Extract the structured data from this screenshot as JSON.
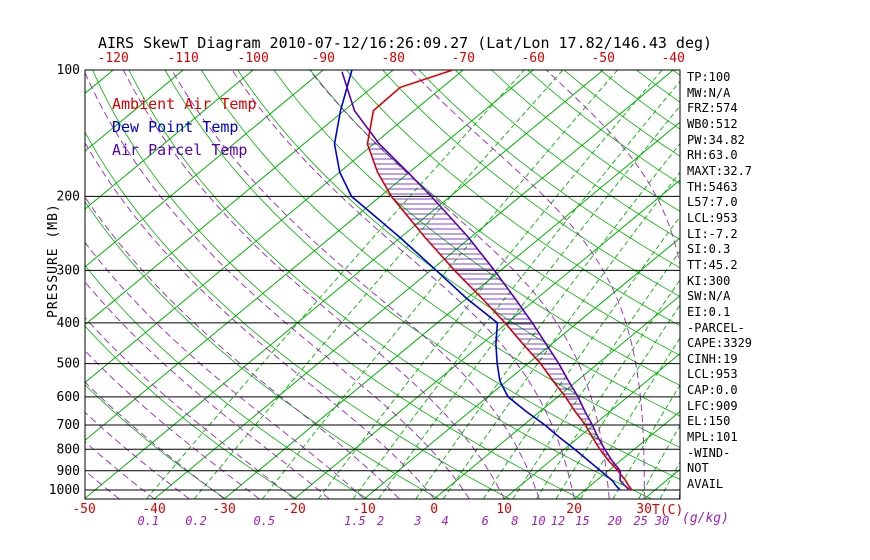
{
  "chart_data": {
    "type": "line",
    "title": "AIRS SkewT Diagram 2010-07-12/16:26:09.27 (Lat/Lon 17.82/146.43 deg)",
    "y_axis_label": "PRESSURE (MB)",
    "x_unit": "T(C)",
    "w_unit": "(g/kg)",
    "pressure_scale": "log",
    "pressure_range_mb": [
      100,
      1050
    ],
    "pressure_ticks": [
      100,
      200,
      300,
      400,
      500,
      600,
      700,
      800,
      900,
      1000
    ],
    "top_temp_labels": [
      -120,
      -110,
      -100,
      -90,
      -80,
      -70,
      -60,
      -50,
      -40
    ],
    "bottom_temp_labels": [
      -50,
      -40,
      -30,
      -20,
      -10,
      0,
      10,
      20,
      30
    ],
    "mixing_ratio_labels": [
      0.1,
      0.2,
      0.5,
      1.5,
      2,
      3,
      4,
      6,
      8,
      10,
      12,
      15,
      20,
      25,
      30
    ],
    "mixing_ratio_lines": [
      0.1,
      0.2,
      0.5,
      1,
      1.5,
      2,
      3,
      4,
      6,
      8,
      10,
      12,
      15,
      20,
      25,
      30
    ],
    "isotherm_step_c": 10,
    "colors": {
      "green": "#00b400",
      "red": "#dd0000",
      "blue": "#0000cd",
      "purple": "#a020c0",
      "parcel": "#5a00b4",
      "black": "#000000"
    },
    "hatch_region": {
      "bottom_p": 909,
      "top_p": 150
    },
    "series": [
      {
        "id": "ambient",
        "name": "Ambient Air Temp",
        "color": "#dd0000",
        "points": [
          [
            1000,
            26.7
          ],
          [
            975,
            25.4
          ],
          [
            950,
            24.2
          ],
          [
            925,
            22.8
          ],
          [
            900,
            21.4
          ],
          [
            850,
            18.2
          ],
          [
            800,
            15.1
          ],
          [
            750,
            12.0
          ],
          [
            700,
            8.8
          ],
          [
            650,
            5.0
          ],
          [
            600,
            1.1
          ],
          [
            550,
            -3.4
          ],
          [
            500,
            -8.2
          ],
          [
            450,
            -14.0
          ],
          [
            400,
            -20.3
          ],
          [
            350,
            -27.8
          ],
          [
            300,
            -36.6
          ],
          [
            250,
            -46.6
          ],
          [
            200,
            -58.4
          ],
          [
            175,
            -64.6
          ],
          [
            150,
            -70.9
          ],
          [
            125,
            -75.8
          ],
          [
            110,
            -76.0
          ],
          [
            100,
            -71.5
          ]
        ]
      },
      {
        "id": "dewpoint",
        "name": "Dew Point Temp",
        "color": "#0000cd",
        "points": [
          [
            1000,
            25.0
          ],
          [
            975,
            23.6
          ],
          [
            950,
            22.3
          ],
          [
            925,
            20.6
          ],
          [
            900,
            18.9
          ],
          [
            850,
            15.3
          ],
          [
            800,
            11.5
          ],
          [
            750,
            7.3
          ],
          [
            700,
            3.0
          ],
          [
            650,
            -2.0
          ],
          [
            600,
            -7.1
          ],
          [
            550,
            -11.0
          ],
          [
            500,
            -14.4
          ],
          [
            450,
            -17.9
          ],
          [
            400,
            -21.4
          ],
          [
            350,
            -30.0
          ],
          [
            300,
            -39.2
          ],
          [
            250,
            -50.2
          ],
          [
            200,
            -64.1
          ],
          [
            175,
            -70.0
          ],
          [
            150,
            -75.6
          ],
          [
            125,
            -80.5
          ],
          [
            100,
            -85.9
          ]
        ]
      },
      {
        "id": "parcel",
        "name": "Air Parcel Temp",
        "color": "#5a00b4",
        "points": [
          [
            1000,
            26.3
          ],
          [
            950,
            23.4
          ],
          [
            900,
            21.7
          ],
          [
            850,
            18.7
          ],
          [
            800,
            15.8
          ],
          [
            750,
            12.8
          ],
          [
            700,
            9.8
          ],
          [
            650,
            6.4
          ],
          [
            600,
            2.9
          ],
          [
            550,
            -1.2
          ],
          [
            500,
            -5.6
          ],
          [
            450,
            -10.7
          ],
          [
            400,
            -16.4
          ],
          [
            350,
            -23.1
          ],
          [
            300,
            -30.9
          ],
          [
            250,
            -40.4
          ],
          [
            200,
            -52.7
          ],
          [
            175,
            -60.3
          ],
          [
            150,
            -69.2
          ],
          [
            125,
            -78.5
          ],
          [
            101,
            -87.0
          ]
        ]
      }
    ],
    "indices": [
      "TP:100",
      "MW:N/A",
      "FRZ:574",
      "WB0:512",
      "PW:34.82",
      "RH:63.0",
      "MAXT:32.7",
      "TH:5463",
      "L57:7.0",
      "LCL:953",
      "LI:-7.2",
      "SI:0.3",
      "TT:45.2",
      "KI:300",
      "SW:N/A",
      "EI:0.1",
      "-PARCEL-",
      "CAPE:3329",
      "CINH:19",
      "LCL:953",
      "CAP:0.0",
      "LFC:909",
      "EL:150",
      "MPL:101",
      "-WIND-",
      "NOT",
      "AVAIL"
    ]
  }
}
